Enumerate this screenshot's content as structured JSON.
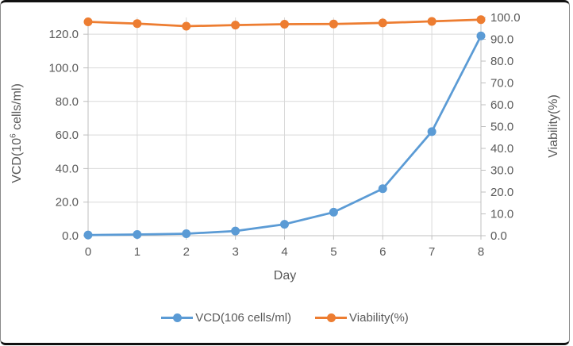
{
  "chart_data": {
    "type": "line",
    "title": "",
    "xlabel": "Day",
    "xlim": [
      0,
      8
    ],
    "x": [
      0,
      1,
      2,
      3,
      4,
      5,
      6,
      7,
      8
    ],
    "x_ticks": [
      "0",
      "1",
      "2",
      "3",
      "4",
      "5",
      "6",
      "7",
      "8"
    ],
    "series": [
      {
        "name": "VCD(106 cells/ml)",
        "axis": "left",
        "color": "#5B9BD5",
        "marker": "circle",
        "values": [
          0.4,
          0.7,
          1.2,
          2.8,
          6.8,
          14.0,
          28.0,
          62.0,
          119.0
        ]
      },
      {
        "name": "Viability(%)",
        "axis": "right",
        "color": "#ED7D31",
        "marker": "circle",
        "values": [
          98.0,
          97.2,
          96.0,
          96.5,
          96.9,
          97.0,
          97.5,
          98.2,
          99.0
        ]
      }
    ],
    "left_axis": {
      "title_pre": "VCD(10",
      "title_sup": "6",
      "title_post": " cells/ml)",
      "ticks": [
        "0.0",
        "20.0",
        "40.0",
        "60.0",
        "80.0",
        "100.0",
        "120.0"
      ],
      "lim": [
        0,
        130
      ]
    },
    "right_axis": {
      "title": "Viability(%)",
      "ticks": [
        "0.0",
        "10.0",
        "20.0",
        "30.0",
        "40.0",
        "50.0",
        "60.0",
        "70.0",
        "80.0",
        "90.0",
        "100.0"
      ],
      "lim": [
        0,
        100
      ]
    },
    "grid": true,
    "legend_position": "bottom",
    "colors": {
      "gridline": "#D9D9D9",
      "axis_line": "#BFBFBF",
      "tick_text": "#595959"
    }
  }
}
